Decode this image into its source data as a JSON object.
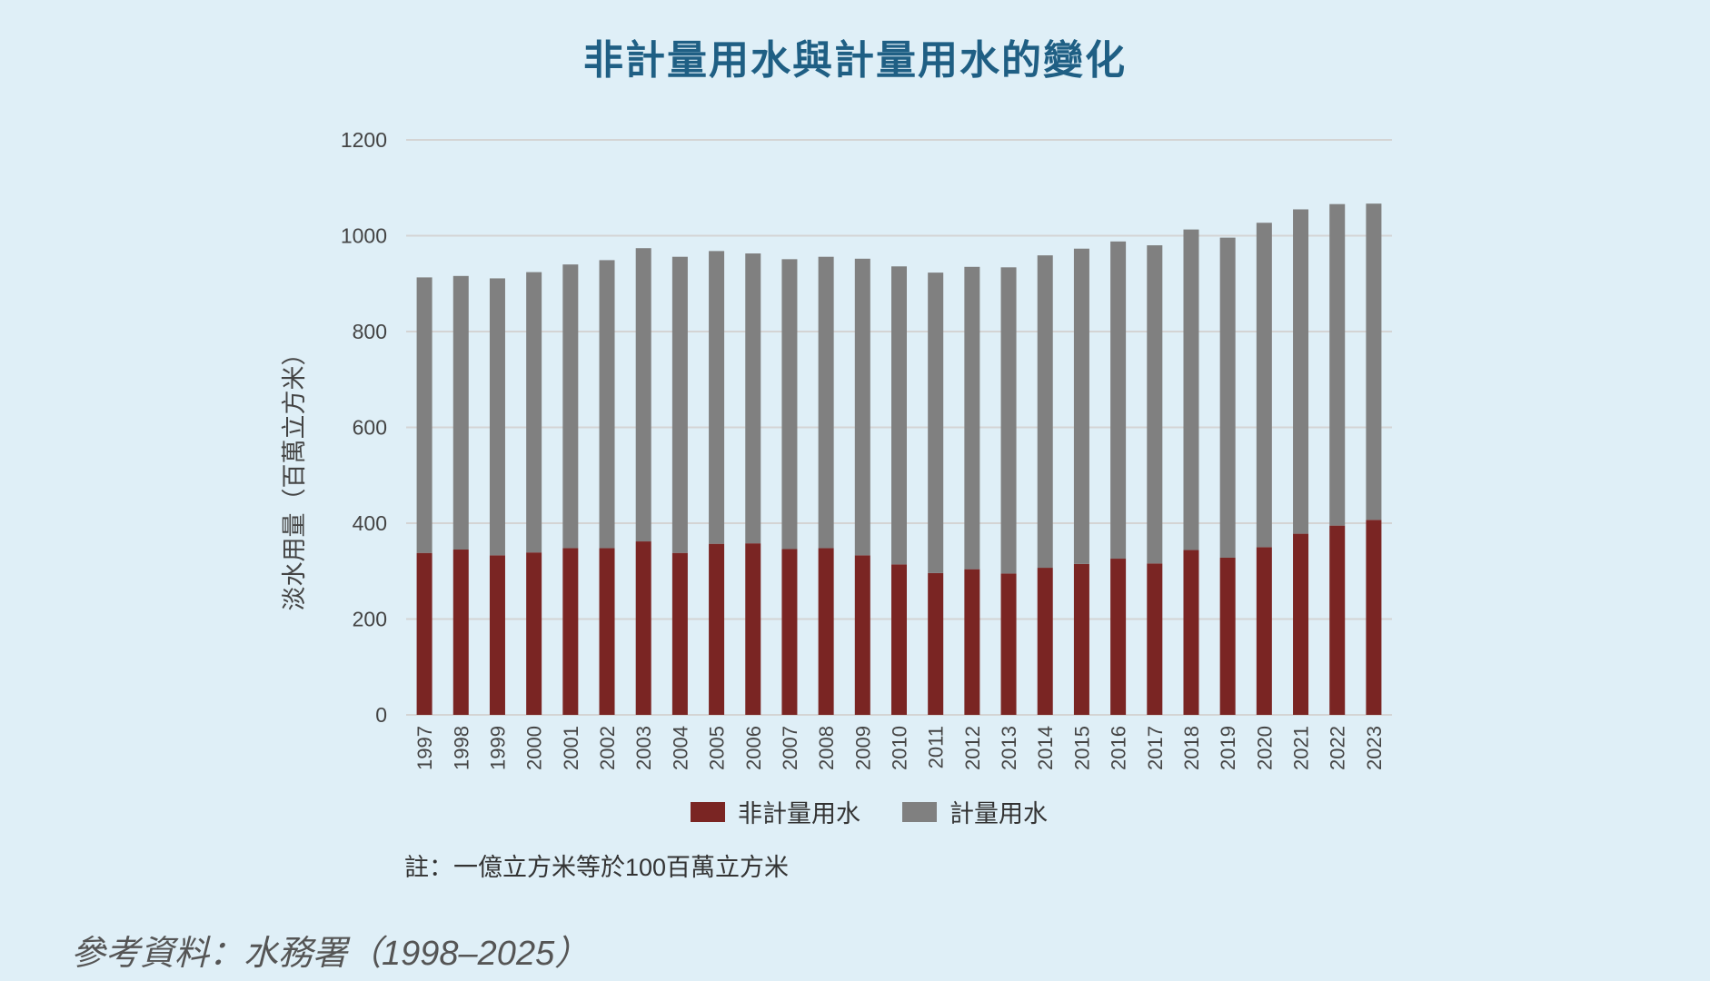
{
  "title": "非計量用水與計量用水的變化",
  "note": "註：一億立方米等於100百萬立方米",
  "source": "參考資料：水務署（1998–2025）",
  "legend": {
    "unmetered": "非計量用水",
    "metered": "計量用水"
  },
  "colors": {
    "unmetered": "#7a2523",
    "metered": "#808080",
    "background": "#dfeff7",
    "title": "#1f5f84",
    "grid": "#d4d4d4"
  },
  "chart_data": {
    "type": "bar",
    "stacked": true,
    "title": "非計量用水與計量用水的變化",
    "ylabel": "淡水用量（百萬立方米）",
    "xlabel": "",
    "ylim": [
      0,
      1200
    ],
    "yticks": [
      0,
      200,
      400,
      600,
      800,
      1000,
      1200
    ],
    "grid": true,
    "legend_position": "bottom",
    "categories": [
      "1997",
      "1998",
      "1999",
      "2000",
      "2001",
      "2002",
      "2003",
      "2004",
      "2005",
      "2006",
      "2007",
      "2008",
      "2009",
      "2010",
      "2011",
      "2012",
      "2013",
      "2014",
      "2015",
      "2016",
      "2017",
      "2018",
      "2019",
      "2020",
      "2021",
      "2022",
      "2023"
    ],
    "series": [
      {
        "name": "非計量用水",
        "values": [
          338,
          345,
          333,
          339,
          348,
          348,
          362,
          338,
          357,
          358,
          346,
          348,
          333,
          314,
          296,
          304,
          295,
          307,
          315,
          326,
          316,
          344,
          328,
          350,
          378,
          395,
          407
        ]
      },
      {
        "name": "計量用水",
        "values": [
          575,
          571,
          578,
          585,
          592,
          601,
          612,
          618,
          611,
          605,
          605,
          608,
          619,
          622,
          627,
          631,
          639,
          652,
          658,
          662,
          664,
          669,
          668,
          677,
          677,
          671,
          660
        ]
      }
    ]
  }
}
